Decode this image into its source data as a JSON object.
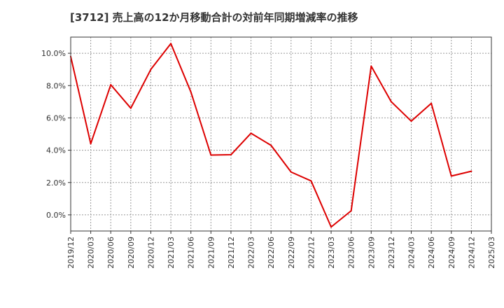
{
  "chart_data": {
    "type": "line",
    "title": "[3712]  売上高の12か月移動合計の対前年同期増減率の推移",
    "xlabel": "",
    "ylabel": "",
    "ylim": [
      -1.0,
      11.0
    ],
    "yticks": [
      0.0,
      2.0,
      4.0,
      6.0,
      8.0,
      10.0
    ],
    "ytick_labels": [
      "0.0%",
      "2.0%",
      "4.0%",
      "6.0%",
      "8.0%",
      "10.0%"
    ],
    "categories": [
      "2019/12",
      "2020/03",
      "2020/06",
      "2020/09",
      "2020/12",
      "2021/03",
      "2021/06",
      "2021/09",
      "2021/12",
      "2022/03",
      "2022/06",
      "2022/09",
      "2022/12",
      "2023/03",
      "2023/06",
      "2023/09",
      "2023/12",
      "2024/03",
      "2024/06",
      "2024/09",
      "2024/12",
      "2025/03"
    ],
    "series": [
      {
        "name": "増減率",
        "color": "#dd0000",
        "values": [
          9.8,
          4.4,
          8.05,
          6.6,
          9.0,
          10.6,
          7.6,
          3.7,
          3.72,
          5.05,
          4.3,
          2.65,
          2.1,
          -0.75,
          0.25,
          9.2,
          7.0,
          5.8,
          6.9,
          2.4,
          2.7,
          null
        ]
      }
    ],
    "grid": true
  }
}
